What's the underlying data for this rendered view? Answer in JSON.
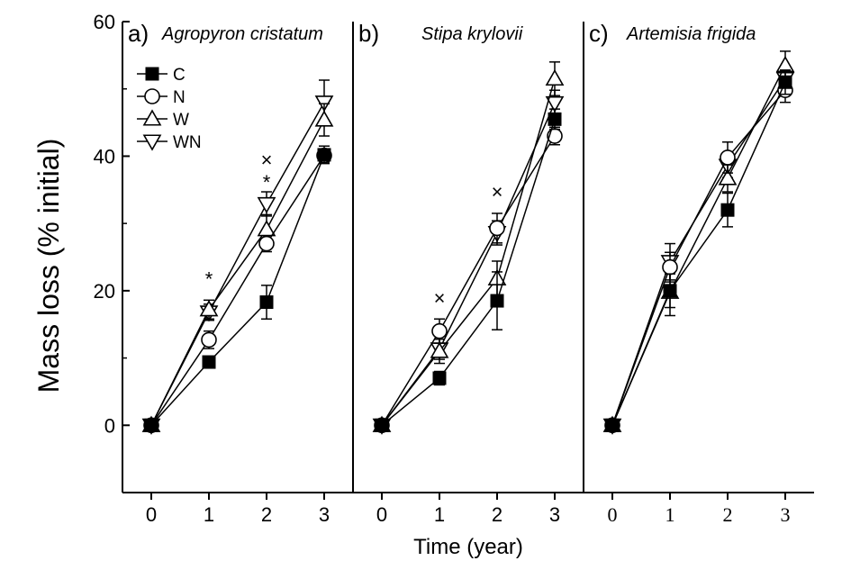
{
  "chart_data": {
    "type": "line",
    "xlabel": "Time (year)",
    "ylabel": "Mass loss (% initial)",
    "ylim": [
      -10,
      60
    ],
    "y_ticks": [
      0,
      20,
      40,
      60
    ],
    "x_ticks": [
      0,
      1,
      2,
      3
    ],
    "legend": {
      "placement": "top-left of panel a",
      "entries": [
        {
          "series": "C",
          "marker": "filled-square"
        },
        {
          "series": "N",
          "marker": "open-circle"
        },
        {
          "series": "W",
          "marker": "open-triangle-up"
        },
        {
          "series": "WN",
          "marker": "open-triangle-down"
        }
      ]
    },
    "panels": [
      {
        "label": "a)",
        "title": "Agropyron cristatum",
        "x": [
          0,
          1,
          2,
          3
        ],
        "series": [
          {
            "name": "C",
            "values": [
              0,
              9.4,
              18.3,
              40.2
            ],
            "errors": [
              0,
              0.8,
              2.5,
              1.3
            ]
          },
          {
            "name": "N",
            "values": [
              0,
              12.7,
              27.0,
              40.1
            ],
            "errors": [
              0,
              1.3,
              1.2,
              1.0
            ]
          },
          {
            "name": "W",
            "values": [
              0,
              17.2,
              29.1,
              45.4
            ],
            "errors": [
              0,
              1.4,
              2.2,
              2.4
            ]
          },
          {
            "name": "WN",
            "values": [
              0,
              16.8,
              32.9,
              48.0
            ],
            "errors": [
              0,
              1.2,
              1.8,
              3.3
            ]
          }
        ],
        "annotations": [
          {
            "text": "*",
            "x": 1,
            "y": 21.8
          },
          {
            "text": "*",
            "x": 2,
            "y": 36.2
          },
          {
            "text": "×",
            "x": 2,
            "y": 39.5
          }
        ]
      },
      {
        "label": "b)",
        "title": "Stipa krylovii",
        "x": [
          0,
          1,
          2,
          3
        ],
        "series": [
          {
            "name": "C",
            "values": [
              0,
              7.0,
              18.5,
              45.5
            ],
            "errors": [
              0,
              1.0,
              4.3,
              1.5
            ]
          },
          {
            "name": "N",
            "values": [
              0,
              14.0,
              29.3,
              43.0
            ],
            "errors": [
              0,
              1.8,
              2.2,
              1.3
            ]
          },
          {
            "name": "W",
            "values": [
              0,
              11.0,
              21.8,
              51.5
            ],
            "errors": [
              0,
              1.8,
              2.6,
              2.5
            ]
          },
          {
            "name": "WN",
            "values": [
              0,
              11.3,
              28.6,
              47.9
            ],
            "errors": [
              0,
              1.5,
              1.8,
              1.9
            ]
          }
        ],
        "annotations": [
          {
            "text": "×",
            "x": 1,
            "y": 19.0
          },
          {
            "text": "×",
            "x": 2,
            "y": 34.8
          }
        ]
      },
      {
        "label": "c)",
        "title": "Artemisia frigida",
        "x": [
          0,
          1,
          2,
          3
        ],
        "series": [
          {
            "name": "C",
            "values": [
              0,
              20.0,
              32.0,
              51.0
            ],
            "errors": [
              0,
              2.5,
              2.5,
              1.8
            ]
          },
          {
            "name": "N",
            "values": [
              0,
              23.5,
              39.8,
              49.8
            ],
            "errors": [
              0,
              2.2,
              2.3,
              1.8
            ]
          },
          {
            "name": "W",
            "values": [
              0,
              19.8,
              36.7,
              53.5
            ],
            "errors": [
              0,
              3.5,
              2.0,
              2.1
            ]
          },
          {
            "name": "WN",
            "values": [
              0,
              24.3,
              38.6,
              51.5
            ],
            "errors": [
              0,
              2.7,
              1.8,
              1.4
            ]
          }
        ],
        "annotations": []
      }
    ]
  }
}
